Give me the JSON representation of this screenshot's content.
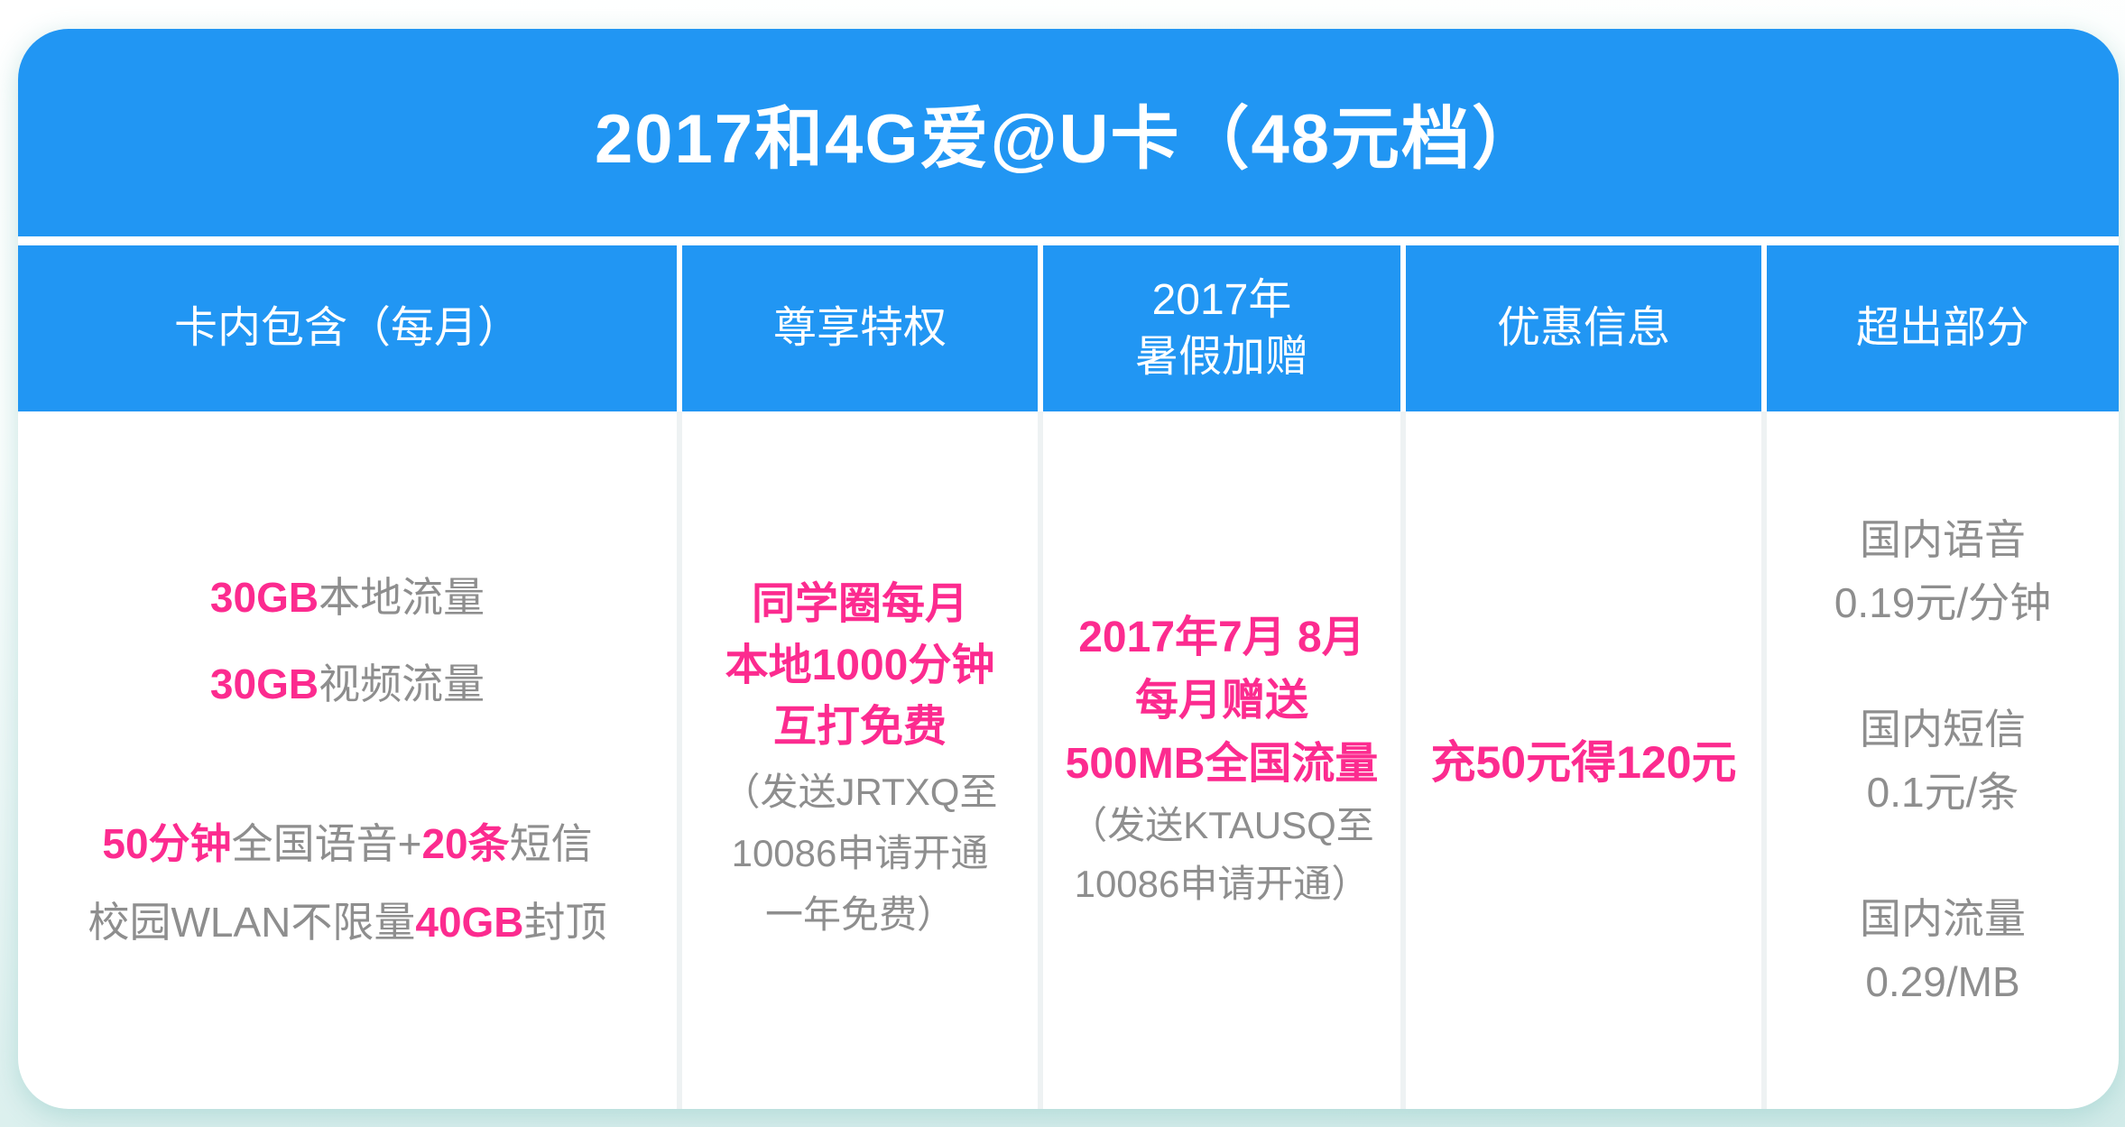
{
  "colors": {
    "header_blue": "#2196F3",
    "highlight_pink": "#FC2B8F",
    "body_gray": "#8E8E8E",
    "page_teal": "#D2EBE9"
  },
  "plan": {
    "title": "2017和4G爱@U卡（48元档）",
    "headers": {
      "included": "卡内包含（每月）",
      "privilege": "尊享特权",
      "summer_bonus_line1": "2017年",
      "summer_bonus_line2": "暑假加赠",
      "promo": "优惠信息",
      "overage": "超出部分"
    },
    "included": {
      "data_lines": [
        {
          "amount": "30GB",
          "label": "本地流量"
        },
        {
          "amount": "30GB",
          "label": "视频流量"
        }
      ],
      "voice_sms_line": {
        "minutes": "50分钟",
        "voice_label": "全国语音+",
        "sms_count": "20条",
        "sms_label": "短信"
      },
      "wlan_line": {
        "prefix": "校园WLAN不限量",
        "cap": "40GB",
        "suffix": "封顶"
      }
    },
    "privilege": {
      "highlight_lines": [
        "同学圈每月",
        "本地1000分钟",
        "互打免费"
      ],
      "note_lines": [
        "（发送JRTXQ至",
        "10086申请开通",
        "一年免费）"
      ]
    },
    "summer_bonus": {
      "highlight_lines": [
        "2017年7月 8月",
        "每月赠送",
        "500MB全国流量"
      ],
      "note_lines": [
        "（发送KTAUSQ至",
        "10086申请开通）"
      ]
    },
    "promo": {
      "highlight": "充50元得120元"
    },
    "overage": {
      "items": [
        {
          "name": "国内语音",
          "rate": "0.19元/分钟"
        },
        {
          "name": "国内短信",
          "rate": "0.1元/条"
        },
        {
          "name": "国内流量",
          "rate": "0.29/MB"
        }
      ]
    }
  }
}
